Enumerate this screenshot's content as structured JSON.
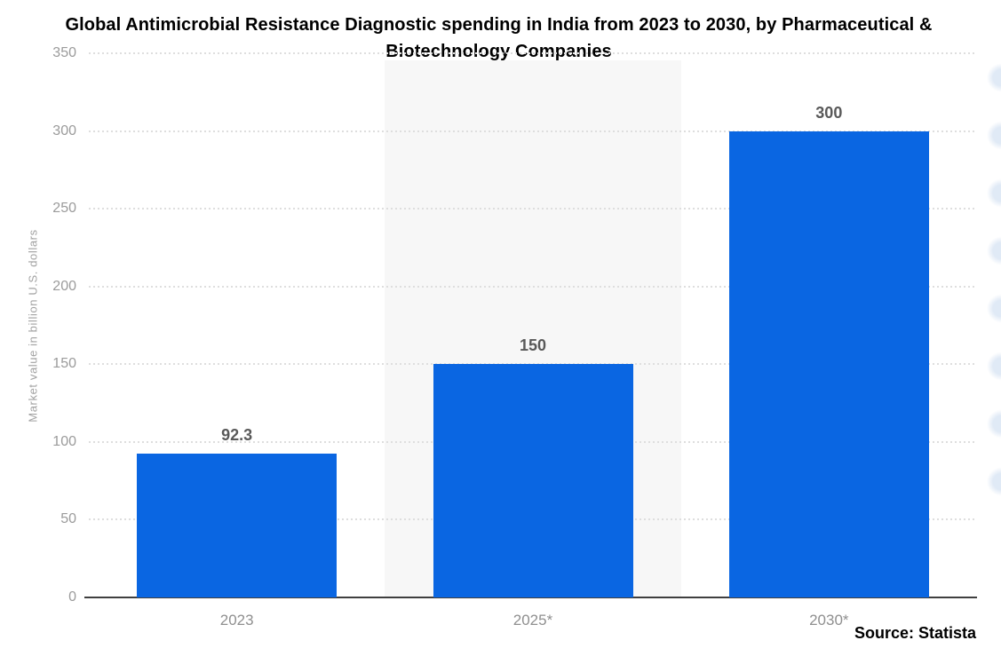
{
  "title": {
    "text": "Global Antimicrobial Resistance Diagnostic spending in India from 2023 to 2030, by Pharmaceutical & Biotechnology Companies"
  },
  "source": {
    "text": "Source: Statista"
  },
  "chart_data": {
    "type": "bar",
    "title": "Global Antimicrobial Resistance Diagnostic spending in India from 2023 to 2030, by Pharmaceutical & Biotechnology Companies",
    "categories": [
      "2023",
      "2025*",
      "2030*"
    ],
    "values": [
      92.3,
      150,
      300
    ],
    "value_labels": [
      "92.3",
      "150",
      "300"
    ],
    "xlabel": "",
    "ylabel": "Market value in billion U.S. dollars",
    "ylim": [
      0,
      350
    ],
    "yticks": [
      0,
      50,
      100,
      150,
      200,
      250,
      300,
      350
    ],
    "grid": "horizontal-dotted",
    "legend": "none",
    "highlighted_column_index": 1,
    "colors": {
      "bar": "#0a66e2",
      "band": "#f7f7f7",
      "grid": "#dedede",
      "axis": "#3f3f3f",
      "tick_label": "#9b9b9b",
      "category_label": "#8f8f8f",
      "value_label": "#595959",
      "title": "#000000",
      "source": "#000000",
      "ylabel": "#a2a2a2",
      "edge_decor": "#c7d8ee"
    }
  }
}
